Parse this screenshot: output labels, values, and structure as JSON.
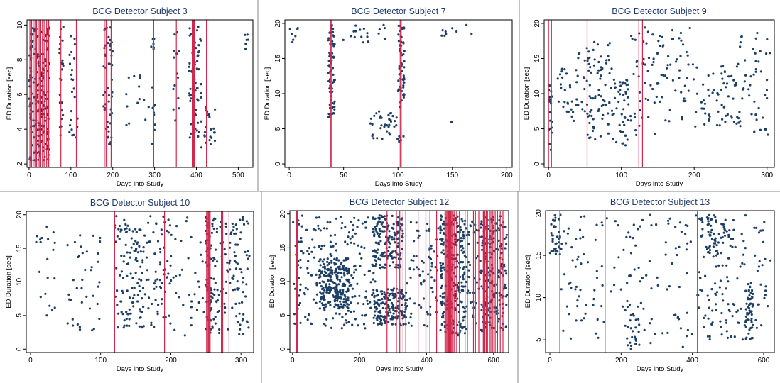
{
  "chart_data": [
    {
      "type": "scatter",
      "title": "BCG Detector Subject 3",
      "xlabel": "Days into Study",
      "ylabel": "ED Duration [sec]",
      "xlim": [
        -5,
        535
      ],
      "ylim": [
        1.8,
        10.3
      ],
      "xticks": [
        0,
        100,
        200,
        300,
        400,
        500
      ],
      "yticks": [
        2,
        4,
        6,
        8,
        10
      ],
      "event_lines": [
        2,
        6,
        10,
        14,
        18,
        24,
        28,
        32,
        36,
        42,
        47,
        76,
        113,
        180,
        184,
        186,
        196,
        298,
        352,
        390,
        393,
        395,
        424
      ],
      "clusters": [
        {
          "x": [
            0,
            48
          ],
          "y": [
            2.2,
            9.9
          ],
          "n": 190
        },
        {
          "x": [
            72,
            82
          ],
          "y": [
            2.5,
            9.9
          ],
          "n": 24
        },
        {
          "x": [
            96,
            120
          ],
          "y": [
            2.5,
            9.9
          ],
          "n": 24
        },
        {
          "x": [
            178,
            200
          ],
          "y": [
            2.8,
            9.9
          ],
          "n": 50
        },
        {
          "x": [
            230,
            290
          ],
          "y": [
            4.0,
            7.2
          ],
          "n": 14
        },
        {
          "x": [
            292,
            302
          ],
          "y": [
            3.0,
            9.9
          ],
          "n": 16
        },
        {
          "x": [
            344,
            358
          ],
          "y": [
            4.5,
            9.9
          ],
          "n": 14
        },
        {
          "x": [
            382,
            412
          ],
          "y": [
            2.8,
            9.9
          ],
          "n": 64
        },
        {
          "x": [
            418,
            445
          ],
          "y": [
            3.0,
            5.3
          ],
          "n": 24
        },
        {
          "x": [
            516,
            524
          ],
          "y": [
            8.5,
            9.9
          ],
          "n": 6
        }
      ]
    },
    {
      "type": "scatter",
      "title": "BCG Detector Subject 7",
      "xlabel": "Days into Study",
      "ylabel": "ED Duration [sec]",
      "xlim": [
        -4,
        205
      ],
      "ylim": [
        -0.5,
        20.5
      ],
      "xticks": [
        0,
        50,
        100,
        150,
        200
      ],
      "yticks": [
        0,
        5,
        10,
        15,
        20
      ],
      "event_lines": [
        38,
        39,
        102,
        103
      ],
      "clusters": [
        {
          "x": [
            0,
            8
          ],
          "y": [
            16.5,
            19.8
          ],
          "n": 7
        },
        {
          "x": [
            36,
            42
          ],
          "y": [
            6.5,
            19.8
          ],
          "n": 70
        },
        {
          "x": [
            48,
            88
          ],
          "y": [
            17.0,
            19.8
          ],
          "n": 18
        },
        {
          "x": [
            74,
            100
          ],
          "y": [
            3.5,
            7.5
          ],
          "n": 38
        },
        {
          "x": [
            100,
            106
          ],
          "y": [
            8.0,
            19.8
          ],
          "n": 60
        },
        {
          "x": [
            101,
            108
          ],
          "y": [
            2.5,
            4.0
          ],
          "n": 6
        },
        {
          "x": [
            140,
            182
          ],
          "y": [
            16.5,
            19.8
          ],
          "n": 9
        },
        {
          "x": [
            145,
            150
          ],
          "y": [
            5.0,
            6.0
          ],
          "n": 1
        }
      ]
    },
    {
      "type": "scatter",
      "title": "BCG Detector Subject 9",
      "xlabel": "Days into Study",
      "ylabel": "ED Duration [sec]",
      "xlim": [
        -6,
        310
      ],
      "ylim": [
        -0.5,
        20.5
      ],
      "xticks": [
        0,
        100,
        200,
        300
      ],
      "yticks": [
        0,
        5,
        10,
        15,
        20
      ],
      "event_lines": [
        0,
        4,
        53,
        124,
        129
      ],
      "clusters": [
        {
          "x": [
            0,
            5
          ],
          "y": [
            1.5,
            12.0
          ],
          "n": 18
        },
        {
          "x": [
            10,
            50
          ],
          "y": [
            5.0,
            16.0
          ],
          "n": 40
        },
        {
          "x": [
            52,
            90
          ],
          "y": [
            3.0,
            17.5
          ],
          "n": 80
        },
        {
          "x": [
            90,
            110
          ],
          "y": [
            2.5,
            12.0
          ],
          "n": 45
        },
        {
          "x": [
            112,
            150
          ],
          "y": [
            4.0,
            19.5
          ],
          "n": 45
        },
        {
          "x": [
            150,
            200
          ],
          "y": [
            6.0,
            19.5
          ],
          "n": 50
        },
        {
          "x": [
            200,
            260
          ],
          "y": [
            5.0,
            14.0
          ],
          "n": 60
        },
        {
          "x": [
            260,
            305
          ],
          "y": [
            4.0,
            19.0
          ],
          "n": 50
        }
      ]
    },
    {
      "type": "scatter",
      "title": "BCG Detector Subject 10",
      "xlabel": "Days into Study",
      "ylabel": "ED Duration [sec]",
      "xlim": [
        -6,
        318
      ],
      "ylim": [
        -0.5,
        20.5
      ],
      "xticks": [
        0,
        100,
        200,
        300
      ],
      "yticks": [
        0,
        5,
        10,
        15,
        20
      ],
      "event_lines": [
        120,
        191,
        251,
        253,
        254,
        255,
        256,
        272,
        274,
        283
      ],
      "clusters": [
        {
          "x": [
            8,
            35
          ],
          "y": [
            5.0,
            18.5
          ],
          "n": 20
        },
        {
          "x": [
            50,
            100
          ],
          "y": [
            2.5,
            17.0
          ],
          "n": 40
        },
        {
          "x": [
            120,
            160
          ],
          "y": [
            3.0,
            19.8
          ],
          "n": 110
        },
        {
          "x": [
            160,
            200
          ],
          "y": [
            3.0,
            19.8
          ],
          "n": 70
        },
        {
          "x": [
            200,
            250
          ],
          "y": [
            2.0,
            19.8
          ],
          "n": 35
        },
        {
          "x": [
            250,
            258
          ],
          "y": [
            2.0,
            19.8
          ],
          "n": 60
        },
        {
          "x": [
            258,
            312
          ],
          "y": [
            2.0,
            19.8
          ],
          "n": 130
        }
      ]
    },
    {
      "type": "scatter",
      "title": "BCG Detector Subject 12",
      "xlabel": "Days into Study",
      "ylabel": "ED Duration [sec]",
      "xlim": [
        -8,
        645
      ],
      "ylim": [
        -0.5,
        20.5
      ],
      "xticks": [
        0,
        200,
        400,
        600
      ],
      "yticks": [
        0,
        5,
        10,
        15,
        20
      ],
      "event_lines": [
        12,
        14,
        282,
        310,
        320,
        330,
        338,
        375,
        398,
        410,
        430,
        455,
        458,
        461,
        464,
        466,
        468,
        470,
        472,
        475,
        478,
        482,
        485,
        490,
        498,
        515,
        522,
        540,
        546,
        556,
        566,
        570,
        574,
        578,
        582,
        588,
        592,
        598,
        605,
        612,
        620,
        628
      ],
      "clusters": [
        {
          "x": [
            0,
            250
          ],
          "y": [
            3.0,
            19.8
          ],
          "n": 220
        },
        {
          "x": [
            80,
            170
          ],
          "y": [
            6.0,
            13.5
          ],
          "n": 220
        },
        {
          "x": [
            240,
            330
          ],
          "y": [
            12.0,
            19.8
          ],
          "n": 170
        },
        {
          "x": [
            240,
            340
          ],
          "y": [
            3.5,
            9.0
          ],
          "n": 180
        },
        {
          "x": [
            340,
            440
          ],
          "y": [
            3.0,
            19.8
          ],
          "n": 70
        },
        {
          "x": [
            440,
            520
          ],
          "y": [
            2.0,
            19.8
          ],
          "n": 260
        },
        {
          "x": [
            520,
            560
          ],
          "y": [
            3.0,
            19.0
          ],
          "n": 40
        },
        {
          "x": [
            560,
            640
          ],
          "y": [
            2.5,
            19.8
          ],
          "n": 200
        }
      ]
    },
    {
      "type": "scatter",
      "title": "BCG Detector Subject 13",
      "xlabel": "Days into Study",
      "ylabel": "ED Duration [sec]",
      "xlim": [
        -12,
        630
      ],
      "ylim": [
        3.5,
        20.3
      ],
      "xticks": [
        0,
        200,
        400,
        600
      ],
      "yticks": [
        5,
        10,
        15,
        20
      ],
      "event_lines": [
        28,
        155,
        414
      ],
      "clusters": [
        {
          "x": [
            0,
            30
          ],
          "y": [
            15.0,
            19.8
          ],
          "n": 35
        },
        {
          "x": [
            30,
            150
          ],
          "y": [
            5.0,
            19.8
          ],
          "n": 55
        },
        {
          "x": [
            150,
            400
          ],
          "y": [
            4.0,
            19.8
          ],
          "n": 90
        },
        {
          "x": [
            210,
            250
          ],
          "y": [
            3.8,
            10.0
          ],
          "n": 18
        },
        {
          "x": [
            410,
            550
          ],
          "y": [
            5.0,
            19.8
          ],
          "n": 110
        },
        {
          "x": [
            440,
            510
          ],
          "y": [
            15.0,
            19.5
          ],
          "n": 45
        },
        {
          "x": [
            550,
            570
          ],
          "y": [
            5.0,
            12.0
          ],
          "n": 55
        },
        {
          "x": [
            570,
            620
          ],
          "y": [
            4.5,
            19.5
          ],
          "n": 25
        }
      ]
    }
  ],
  "style": {
    "point_color": "#1c3f66",
    "event_line_color": "#d1284d",
    "title_color": "#1f3a6d",
    "frame_color": "#000000",
    "separator_color": "#888888"
  }
}
